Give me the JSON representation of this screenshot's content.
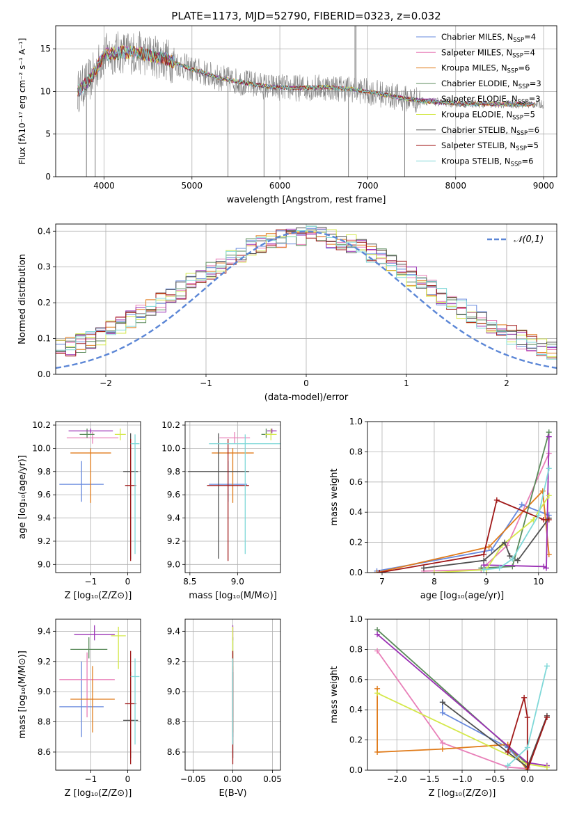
{
  "page_title": "PLATE=1173, MJD=52790, FIBERID=0323, z=0.032",
  "colors": {
    "grid": "#b0b0b0",
    "spectrum": "#808080",
    "normal_curve": "#5b86d6"
  },
  "legend": [
    {
      "label": "Chabrier MILES, N",
      "sub": "SSP",
      "tail": "=4",
      "color": "#6688dd"
    },
    {
      "label": "Salpeter MILES, N",
      "sub": "SSP",
      "tail": "=4",
      "color": "#e87fb8"
    },
    {
      "label": "Kroupa MILES, N",
      "sub": "SSP",
      "tail": "=6",
      "color": "#e07b1a"
    },
    {
      "label": "Chabrier ELODIE, N",
      "sub": "SSP",
      "tail": "=3",
      "color": "#5a8a5a"
    },
    {
      "label": "Salpeter ELODIE, N",
      "sub": "SSP",
      "tail": "=3",
      "color": "#9a2fb4"
    },
    {
      "label": "Kroupa ELODIE, N",
      "sub": "SSP",
      "tail": "=5",
      "color": "#d4e84a"
    },
    {
      "label": "Chabrier STELIB, N",
      "sub": "SSP",
      "tail": "=6",
      "color": "#505050"
    },
    {
      "label": "Salpeter STELIB, N",
      "sub": "SSP",
      "tail": "=5",
      "color": "#a01818"
    },
    {
      "label": "Kroupa STELIB, N",
      "sub": "SSP",
      "tail": "=6",
      "color": "#7fd8d8"
    }
  ],
  "chart_data": [
    {
      "id": "spectrum",
      "type": "line",
      "xlabel": "wavelength [Angstrom, rest frame]",
      "ylabel": "Flux [fλ10⁻¹⁷ erg cm⁻² s⁻¹ A⁻¹]",
      "xlim": [
        3450,
        9150
      ],
      "ylim": [
        0,
        17.7
      ],
      "xticks": [
        4000,
        5000,
        6000,
        7000,
        8000,
        9000
      ],
      "yticks": [
        0,
        5,
        10,
        15
      ],
      "continuum": {
        "x": [
          3700,
          3850,
          4000,
          4200,
          4400,
          4700,
          5000,
          5300,
          5600,
          5900,
          6200,
          6500,
          6800,
          7100,
          7400,
          7700,
          8000,
          8400,
          8800,
          9000
        ],
        "y": [
          10.0,
          11.5,
          14.3,
          14.6,
          14.5,
          13.8,
          12.6,
          11.6,
          11.0,
          10.5,
          10.4,
          10.5,
          10.3,
          9.8,
          9.2,
          8.8,
          8.6,
          8.5,
          8.5,
          8.5
        ]
      },
      "observed_range": [
        3700,
        9000
      ],
      "model_range": [
        3700,
        8900
      ],
      "features": [
        {
          "x": 3800,
          "y": 0.0
        },
        {
          "x": 3900,
          "y": 0.0
        },
        {
          "x": 5410,
          "y": 0.0
        },
        {
          "x": 5820,
          "y": 0.0
        },
        {
          "x": 6780,
          "y": 0.0
        },
        {
          "x": 7420,
          "y": 0.0
        },
        {
          "x": 6860,
          "y": 17.7
        }
      ]
    },
    {
      "id": "residuals",
      "type": "histogram",
      "xlabel": "(data-model)/error",
      "ylabel": "Normed distribution",
      "xlim": [
        -2.5,
        2.5
      ],
      "ylim": [
        0,
        0.42
      ],
      "xticks": [
        -2,
        -1,
        0,
        1,
        2
      ],
      "yticks": [
        0.0,
        0.1,
        0.2,
        0.3,
        0.4
      ],
      "bin_edges_step": 0.1,
      "legend_label": "𝒩(0,1)",
      "gaussian": {
        "mean": 0,
        "sigma": 1
      }
    },
    {
      "id": "age_vs_Z",
      "type": "scatter",
      "xlabel": "Z [log₁₀(Z/Z⊙)]",
      "ylabel": "age  [log₁₀(age/yr)]",
      "xlim": [
        -1.95,
        0.35
      ],
      "ylim": [
        8.93,
        10.23
      ],
      "xticks": [
        -1,
        0
      ],
      "yticks": [
        9.0,
        9.2,
        9.4,
        9.6,
        9.8,
        10.0,
        10.2
      ],
      "points": [
        {
          "x": -1.25,
          "y": 9.69,
          "xerr": 0.6,
          "yerr_lo": 0.15,
          "yerr_hi": 0.2
        },
        {
          "x": -0.95,
          "y": 10.09,
          "xerr": 0.7,
          "yerr_lo": 0.05,
          "yerr_hi": 0.05
        },
        {
          "x": -1.0,
          "y": 9.96,
          "xerr": 0.55,
          "yerr_lo": 0.43,
          "yerr_hi": 0.04
        },
        {
          "x": -1.1,
          "y": 10.12,
          "xerr": 0.2,
          "yerr_lo": 0.03,
          "yerr_hi": 0.05
        },
        {
          "x": -1.0,
          "y": 10.15,
          "xerr": 0.6,
          "yerr_lo": 0.02,
          "yerr_hi": 0.02
        },
        {
          "x": -0.2,
          "y": 10.12,
          "xerr": 0.15,
          "yerr_lo": 0.05,
          "yerr_hi": 0.05
        },
        {
          "x": 0.08,
          "y": 9.8,
          "xerr": 0.2,
          "yerr_lo": 0.75,
          "yerr_hi": 0.33
        },
        {
          "x": 0.08,
          "y": 9.68,
          "xerr": 0.15,
          "yerr_lo": 0.65,
          "yerr_hi": 0.4
        },
        {
          "x": 0.2,
          "y": 10.04,
          "xerr": 0.12,
          "yerr_lo": 0.95,
          "yerr_hi": 0.08
        }
      ]
    },
    {
      "id": "age_vs_mass",
      "type": "scatter",
      "xlabel": "mass [log₁₀(M/M⊙)]",
      "ylabel": "",
      "xlim": [
        8.45,
        9.45
      ],
      "ylim": [
        8.93,
        10.23
      ],
      "xticks": [
        8.5,
        9.0
      ],
      "yticks": [
        9.0,
        9.2,
        9.4,
        9.6,
        9.8,
        10.0,
        10.2
      ],
      "points": [
        {
          "x": 8.9,
          "y": 9.69,
          "xerr": 0.2,
          "yerr_lo": 0.15,
          "yerr_hi": 0.2
        },
        {
          "x": 8.97,
          "y": 10.09,
          "xerr": 0.16,
          "yerr_lo": 0.05,
          "yerr_hi": 0.05
        },
        {
          "x": 8.95,
          "y": 9.96,
          "xerr": 0.22,
          "yerr_lo": 0.43,
          "yerr_hi": 0.04
        },
        {
          "x": 9.3,
          "y": 10.12,
          "xerr": 0.05,
          "yerr_lo": 0.03,
          "yerr_hi": 0.05
        },
        {
          "x": 9.36,
          "y": 10.15,
          "xerr": 0.05,
          "yerr_lo": 0.02,
          "yerr_hi": 0.02
        },
        {
          "x": 9.35,
          "y": 10.12,
          "xerr": 0.06,
          "yerr_lo": 0.05,
          "yerr_hi": 0.05
        },
        {
          "x": 8.8,
          "y": 9.8,
          "xerr": 0.32,
          "yerr_lo": 0.75,
          "yerr_hi": 0.33
        },
        {
          "x": 8.9,
          "y": 9.68,
          "xerr": 0.22,
          "yerr_lo": 0.65,
          "yerr_hi": 0.4
        },
        {
          "x": 9.08,
          "y": 10.04,
          "xerr": 0.38,
          "yerr_lo": 0.95,
          "yerr_hi": 0.08
        }
      ]
    },
    {
      "id": "weight_vs_age",
      "type": "line",
      "xlabel": "age  [log₁₀(age/yr)]",
      "ylabel": "mass weight",
      "xlim": [
        6.72,
        10.35
      ],
      "ylim": [
        0,
        1.0
      ],
      "xticks": [
        7,
        8,
        9,
        10
      ],
      "yticks": [
        0.0,
        0.2,
        0.4,
        0.6,
        0.8,
        1.0
      ],
      "series": [
        {
          "x": [
            6.9,
            9.1,
            9.68,
            10.2
          ],
          "y": [
            0.01,
            0.15,
            0.45,
            0.38
          ]
        },
        {
          "x": [
            7.8,
            8.9,
            9.4,
            10.2
          ],
          "y": [
            0.01,
            0.02,
            0.18,
            0.79
          ]
        },
        {
          "x": [
            6.9,
            9.05,
            10.08,
            10.2
          ],
          "y": [
            0.0,
            0.17,
            0.54,
            0.12
          ]
        },
        {
          "x": [
            8.9,
            9.5,
            10.2
          ],
          "y": [
            0.03,
            0.04,
            0.93
          ]
        },
        {
          "x": [
            8.95,
            10.1,
            10.15,
            10.2
          ],
          "y": [
            0.05,
            0.04,
            0.03,
            0.9
          ]
        },
        {
          "x": [
            8.0,
            9.0,
            9.3,
            9.9,
            10.2
          ],
          "y": [
            0.0,
            0.02,
            0.18,
            0.35,
            0.51
          ]
        },
        {
          "x": [
            7.8,
            8.95,
            9.35,
            9.45,
            9.6,
            10.2
          ],
          "y": [
            0.03,
            0.08,
            0.2,
            0.11,
            0.08,
            0.36
          ]
        },
        {
          "x": [
            6.95,
            8.95,
            9.2,
            10.1,
            10.2
          ],
          "y": [
            0.0,
            0.12,
            0.48,
            0.35,
            0.35
          ]
        },
        {
          "x": [
            8.95,
            9.25,
            9.5,
            10.0,
            10.2
          ],
          "y": [
            0.02,
            0.03,
            0.09,
            0.38,
            0.69
          ]
        }
      ]
    },
    {
      "id": "mass_vs_Z",
      "type": "scatter",
      "xlabel": "Z [log₁₀(Z/Z⊙)]",
      "ylabel": "mass [log₁₀(M/M⊙)]",
      "xlim": [
        -1.95,
        0.35
      ],
      "ylim": [
        8.48,
        9.48
      ],
      "xticks": [
        -1,
        0
      ],
      "yticks": [
        8.6,
        8.8,
        9.0,
        9.2,
        9.4
      ],
      "points": [
        {
          "x": -1.25,
          "y": 8.9,
          "xerr": 0.6,
          "yerr_lo": 0.2,
          "yerr_hi": 0.3
        },
        {
          "x": -1.1,
          "y": 9.08,
          "xerr": 0.75,
          "yerr_lo": 0.25,
          "yerr_hi": 0.18
        },
        {
          "x": -0.95,
          "y": 8.95,
          "xerr": 0.6,
          "yerr_lo": 0.22,
          "yerr_hi": 0.22
        },
        {
          "x": -1.05,
          "y": 9.28,
          "xerr": 0.5,
          "yerr_lo": 0.06,
          "yerr_hi": 0.08
        },
        {
          "x": -0.9,
          "y": 9.38,
          "xerr": 0.55,
          "yerr_lo": 0.04,
          "yerr_hi": 0.06
        },
        {
          "x": -0.25,
          "y": 9.37,
          "xerr": 0.2,
          "yerr_lo": 0.22,
          "yerr_hi": 0.06
        },
        {
          "x": 0.08,
          "y": 8.81,
          "xerr": 0.2,
          "yerr_lo": 0.25,
          "yerr_hi": 0.32
        },
        {
          "x": 0.08,
          "y": 8.92,
          "xerr": 0.15,
          "yerr_lo": 0.4,
          "yerr_hi": 0.35
        },
        {
          "x": 0.2,
          "y": 9.1,
          "xerr": 0.12,
          "yerr_lo": 0.45,
          "yerr_hi": 0.12
        }
      ]
    },
    {
      "id": "mass_vs_ebv",
      "type": "scatter",
      "xlabel": "E(B-V)",
      "ylabel": "",
      "xlim": [
        -0.06,
        0.06
      ],
      "ylim": [
        8.48,
        9.48
      ],
      "xticks": [
        -0.05,
        0.0,
        0.05
      ],
      "yticks": [
        8.6,
        8.8,
        9.0,
        9.2,
        9.4
      ],
      "points": [
        {
          "x": 0.0,
          "y": 8.9,
          "xerr": 0,
          "yerr_lo": 0.2,
          "yerr_hi": 0.3
        },
        {
          "x": 0.0,
          "y": 9.08,
          "xerr": 0,
          "yerr_lo": 0.25,
          "yerr_hi": 0.18
        },
        {
          "x": 0.0,
          "y": 8.95,
          "xerr": 0,
          "yerr_lo": 0.22,
          "yerr_hi": 0.22
        },
        {
          "x": 0.0,
          "y": 9.28,
          "xerr": 0,
          "yerr_lo": 0.06,
          "yerr_hi": 0.08
        },
        {
          "x": 0.0,
          "y": 9.38,
          "xerr": 0,
          "yerr_lo": 0.04,
          "yerr_hi": 0.06
        },
        {
          "x": 0.0,
          "y": 9.37,
          "xerr": 0,
          "yerr_lo": 0.22,
          "yerr_hi": 0.06
        },
        {
          "x": 0.0,
          "y": 8.81,
          "xerr": 0,
          "yerr_lo": 0.25,
          "yerr_hi": 0.32
        },
        {
          "x": 0.0,
          "y": 8.92,
          "xerr": 0,
          "yerr_lo": 0.4,
          "yerr_hi": 0.35
        },
        {
          "x": 0.0,
          "y": 9.1,
          "xerr": 0,
          "yerr_lo": 0.45,
          "yerr_hi": 0.12
        }
      ]
    },
    {
      "id": "weight_vs_Z",
      "type": "line",
      "xlabel": "Z [log₁₀(Z/Z⊙)]",
      "ylabel": "mass weight",
      "xlim": [
        -2.45,
        0.45
      ],
      "ylim": [
        0,
        1.0
      ],
      "xticks": [
        -2.0,
        -1.5,
        -1.0,
        -0.5,
        0.0
      ],
      "yticks": [
        0.0,
        0.2,
        0.4,
        0.6,
        0.8,
        1.0
      ],
      "series": [
        {
          "x": [
            -1.3,
            -1.3,
            -0.3,
            0.0
          ],
          "y": [
            0.45,
            0.38,
            0.15,
            0.01
          ]
        },
        {
          "x": [
            -2.3,
            -1.3,
            -0.3,
            0.0
          ],
          "y": [
            0.79,
            0.18,
            0.02,
            0.01
          ]
        },
        {
          "x": [
            -2.3,
            -2.3,
            -1.3,
            -0.3,
            0.0
          ],
          "y": [
            0.54,
            0.12,
            0.14,
            0.17,
            0.0
          ]
        },
        {
          "x": [
            -2.3,
            0.0
          ],
          "y": [
            0.93,
            0.04
          ]
        },
        {
          "x": [
            -2.3,
            0.0,
            0.3
          ],
          "y": [
            0.9,
            0.05,
            0.03
          ]
        },
        {
          "x": [
            -2.3,
            0.0,
            0.3
          ],
          "y": [
            0.51,
            0.04,
            0.02
          ]
        },
        {
          "x": [
            -1.3,
            0.0,
            0.3
          ],
          "y": [
            0.45,
            0.02,
            0.36
          ]
        },
        {
          "x": [
            -0.3,
            -0.05,
            0.0,
            0.0,
            0.3
          ],
          "y": [
            0.12,
            0.48,
            0.35,
            0.0,
            0.35
          ]
        },
        {
          "x": [
            -0.3,
            0.0,
            0.3
          ],
          "y": [
            0.03,
            0.15,
            0.69
          ]
        }
      ]
    }
  ]
}
